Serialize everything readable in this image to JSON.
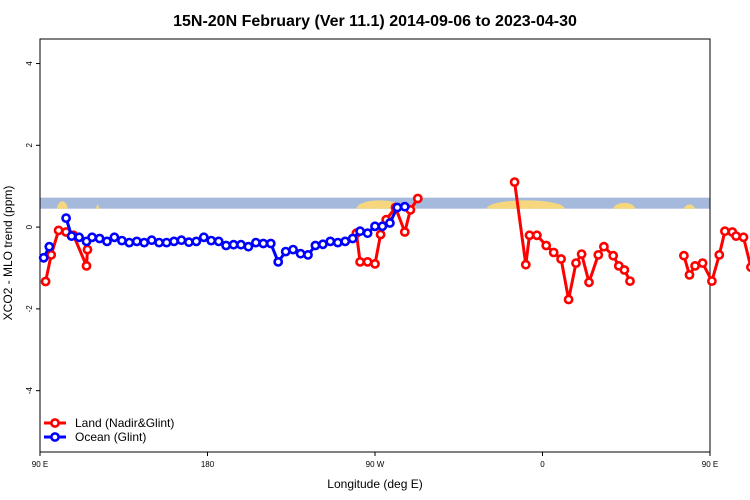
{
  "chart_data": {
    "type": "line",
    "title": "15N-20N February (Ver 11.1)   2014-09-06 to 2023-04-30",
    "xlabel": "Longitude (deg E)",
    "ylabel": "XCO2 - MLO trend (ppm)",
    "xlim": [
      90,
      450
    ],
    "ylim": [
      -5.5,
      4.6
    ],
    "x_ticks": [
      {
        "value": 90,
        "label": "90 E"
      },
      {
        "value": 180,
        "label": "180"
      },
      {
        "value": 270,
        "label": "90 W"
      },
      {
        "value": 360,
        "label": "0"
      },
      {
        "value": 450,
        "label": "90 E"
      },
      {
        "value": 540,
        "label": "180"
      }
    ],
    "y_ticks": [
      {
        "value": -4,
        "label": "-4"
      },
      {
        "value": -2,
        "label": "-2"
      },
      {
        "value": 0,
        "label": "0"
      },
      {
        "value": 2,
        "label": "2"
      },
      {
        "value": 4,
        "label": "4"
      }
    ],
    "map_strip": {
      "y_bottom": 0.45,
      "y_top": 0.72,
      "ocean_color": "#a4b9dc",
      "land_color": "#f6d77e"
    },
    "legend": {
      "position": "bottom-left"
    },
    "series": [
      {
        "name": "Land (Nadir&Glint)",
        "color": "#ff0000",
        "segments": [
          [
            [
              93,
              -1.33
            ],
            [
              96,
              -0.68
            ],
            [
              100,
              -0.08
            ],
            [
              104,
              -0.12
            ],
            [
              108,
              -0.2
            ],
            [
              115,
              -0.95
            ],
            [
              115.5,
              -0.55
            ]
          ],
          [
            [
              260,
              -0.15
            ],
            [
              262,
              -0.85
            ],
            [
              266,
              -0.85
            ],
            [
              270,
              -0.9
            ],
            [
              273,
              -0.18
            ],
            [
              276,
              0.18
            ],
            [
              281,
              0.48
            ],
            [
              286,
              -0.12
            ],
            [
              289,
              0.42
            ],
            [
              293,
              0.7
            ]
          ],
          [
            [
              345,
              1.1
            ],
            [
              351,
              -0.92
            ],
            [
              353,
              -0.2
            ],
            [
              357,
              -0.2
            ],
            [
              362,
              -0.45
            ],
            [
              366,
              -0.62
            ],
            [
              370,
              -0.78
            ],
            [
              374,
              -1.77
            ],
            [
              378,
              -0.88
            ],
            [
              381,
              -0.66
            ],
            [
              385,
              -1.35
            ],
            [
              390,
              -0.68
            ],
            [
              393,
              -0.48
            ],
            [
              398,
              -0.7
            ],
            [
              401,
              -0.95
            ],
            [
              404,
              -1.05
            ],
            [
              407,
              -1.32
            ]
          ],
          [
            [
              436,
              -0.7
            ],
            [
              439,
              -1.17
            ],
            [
              442,
              -0.95
            ],
            [
              446,
              -0.88
            ],
            [
              451,
              -1.32
            ],
            [
              455,
              -0.68
            ],
            [
              458,
              -0.1
            ],
            [
              462,
              -0.12
            ],
            [
              464,
              -0.22
            ],
            [
              468,
              -0.25
            ],
            [
              472,
              -0.98
            ],
            [
              474,
              -0.52
            ]
          ]
        ]
      },
      {
        "name": "Ocean (Glint)",
        "color": "#0000ff",
        "segments": [
          [
            [
              92,
              -0.75
            ],
            [
              95,
              -0.48
            ]
          ],
          [
            [
              104,
              0.22
            ],
            [
              107,
              -0.22
            ],
            [
              111,
              -0.25
            ],
            [
              115,
              -0.35
            ],
            [
              118,
              -0.25
            ],
            [
              122,
              -0.28
            ],
            [
              126,
              -0.35
            ],
            [
              130,
              -0.25
            ],
            [
              134,
              -0.33
            ],
            [
              138,
              -0.38
            ],
            [
              142,
              -0.35
            ],
            [
              146,
              -0.38
            ],
            [
              150,
              -0.32
            ],
            [
              154,
              -0.38
            ],
            [
              158,
              -0.38
            ],
            [
              162,
              -0.35
            ],
            [
              166,
              -0.32
            ],
            [
              170,
              -0.37
            ],
            [
              174,
              -0.35
            ],
            [
              178,
              -0.25
            ],
            [
              182,
              -0.33
            ],
            [
              186,
              -0.35
            ],
            [
              190,
              -0.45
            ],
            [
              194,
              -0.43
            ],
            [
              198,
              -0.43
            ],
            [
              202,
              -0.48
            ],
            [
              206,
              -0.38
            ],
            [
              210,
              -0.4
            ],
            [
              214,
              -0.4
            ],
            [
              218,
              -0.85
            ],
            [
              222,
              -0.6
            ],
            [
              226,
              -0.55
            ],
            [
              230,
              -0.65
            ],
            [
              234,
              -0.68
            ],
            [
              238,
              -0.45
            ],
            [
              242,
              -0.42
            ],
            [
              246,
              -0.35
            ],
            [
              250,
              -0.38
            ],
            [
              254,
              -0.35
            ],
            [
              258,
              -0.28
            ],
            [
              262,
              -0.1
            ],
            [
              266,
              -0.15
            ],
            [
              270,
              0.02
            ],
            [
              274,
              0.02
            ],
            [
              278,
              0.1
            ],
            [
              282,
              0.48
            ],
            [
              286,
              0.5
            ]
          ]
        ],
        "segments_note": ""
      }
    ]
  }
}
